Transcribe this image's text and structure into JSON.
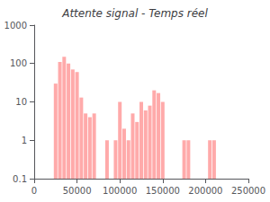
{
  "chart_data": {
    "type": "bar",
    "title": "Attente signal - Temps réel",
    "x": [
      25000,
      30000,
      35000,
      40000,
      45000,
      50000,
      55000,
      60000,
      65000,
      70000,
      85000,
      95000,
      100000,
      105000,
      110000,
      115000,
      120000,
      125000,
      130000,
      135000,
      140000,
      145000,
      150000,
      175000,
      180000,
      205000,
      210000
    ],
    "values": [
      30,
      110,
      150,
      100,
      70,
      60,
      13,
      5,
      4,
      5,
      1,
      1,
      10,
      2,
      1,
      5,
      3,
      10,
      6,
      8,
      20,
      17,
      10,
      1,
      1,
      1,
      1
    ],
    "color": "#ffaaaa",
    "xlim": [
      0,
      250000
    ],
    "xticks": [
      0,
      50000,
      100000,
      150000,
      200000,
      250000
    ],
    "ylim": [
      0.1,
      1000
    ],
    "yticks": [
      0.1,
      1,
      10,
      100,
      1000
    ],
    "log": "y",
    "grid": false
  }
}
